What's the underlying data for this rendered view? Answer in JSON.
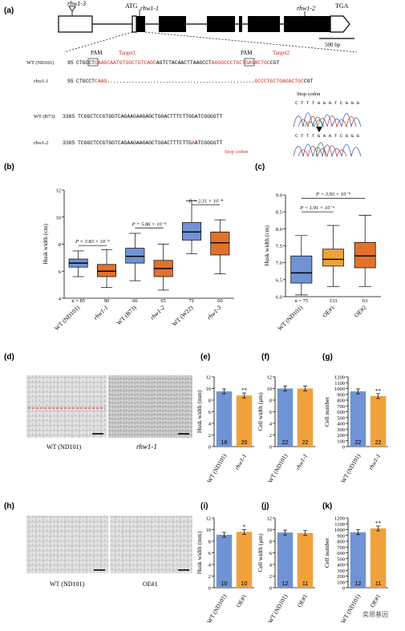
{
  "panel_labels": {
    "a": "(a)",
    "b": "(b)",
    "c": "(c)",
    "d": "(d)",
    "e": "(e)",
    "f": "(f)",
    "g": "(g)",
    "h": "(h)",
    "i": "(i)",
    "j": "(j)",
    "k": "(k)"
  },
  "gene": {
    "rhw1_3": "rhw1-3",
    "atg": "ATG",
    "rhw1_1": "rhw1-1",
    "rhw1_2": "rhw1-2",
    "tga": "TGA",
    "scale": "500 bp",
    "pam": "PAM",
    "target1": "Target1",
    "target2": "Target2",
    "stop_codon": "Stop codon",
    "seq_rows": [
      {
        "label": "WT (ND101)",
        "pos": "95",
        "left": "CTG",
        "box": "CCT",
        "red1": "CAAGCAATGTGGCTGTCAGC",
        "mid": "AGTCTACAACTTAAG",
        "box2": "CCT",
        "red2": "AGGGCCCTGCTGAGACTGC",
        "tail": "CGT"
      },
      {
        "label": "rhw1-1",
        "pos": "95",
        "left": "CTGCCT",
        "red1": "CAAG",
        "dash": "................................................",
        "red2": "GCCCTGCTGAGACTGC",
        "tail": "CGT"
      },
      {
        "label": "WT (B73)",
        "pos": "3385",
        "seq": "TCGGCTCCGTGGTCAGAAGAAGAGCTGGACTTTCTTGGATCGGGGTT"
      },
      {
        "label": "rhw1-2",
        "pos": "3385",
        "seq1": "TCGGCTCCGTGGTCAGAAGAAGAGCTGGACTTTCTTG",
        "red": "A",
        "seq2": "ATCGGGGTT"
      }
    ],
    "chrom_top": "C T T T G G A T C G G G",
    "chrom_bot": "C T T T G A A T C G G G"
  },
  "chart_data": [
    {
      "type": "box",
      "panel": "b",
      "ylabel": "Husk width (cm)",
      "ylim": [
        4,
        12
      ],
      "yticks": [
        4,
        6,
        8,
        10,
        12
      ],
      "categories": [
        "WT (ND101)",
        "rhw1-1",
        "WT (B73)",
        "rhw1-2",
        "WT (W22)",
        "rhw1-3"
      ],
      "n": [
        "n = 85",
        "90",
        "66",
        "65",
        "71",
        "60"
      ],
      "boxes": [
        {
          "min": 5.6,
          "q1": 6.3,
          "med": 6.6,
          "q3": 6.9,
          "max": 7.5,
          "color": "#6f93d4"
        },
        {
          "min": 4.8,
          "q1": 5.6,
          "med": 6.0,
          "q3": 6.5,
          "max": 7.6,
          "color": "#e2722b"
        },
        {
          "min": 5.3,
          "q1": 6.6,
          "med": 7.1,
          "q3": 7.7,
          "max": 8.8,
          "color": "#6f93d4"
        },
        {
          "min": 4.6,
          "q1": 5.6,
          "med": 6.2,
          "q3": 6.8,
          "max": 8.0,
          "color": "#e2722b"
        },
        {
          "min": 7.3,
          "q1": 8.3,
          "med": 8.9,
          "q3": 9.6,
          "max": 11.2,
          "color": "#6f93d4"
        },
        {
          "min": 5.8,
          "q1": 7.2,
          "med": 8.1,
          "q3": 8.9,
          "max": 9.8,
          "color": "#e2722b"
        }
      ],
      "pvals": [
        "P = 3.83 × 10⁻⁵",
        "P = 5.86 × 10⁻⁵",
        "P = 2.31 × 10⁻⁸"
      ]
    },
    {
      "type": "box",
      "panel": "c",
      "ylabel": "Husk width (cm)",
      "ylim": [
        6.0,
        9.0
      ],
      "yticks": [
        "6.0",
        "6.5",
        "7.0",
        "7.5",
        "8.0",
        "8.5",
        "9.0"
      ],
      "categories": [
        "WT (ND101)",
        "OE#1",
        "OE#2"
      ],
      "n": [
        "n = 75",
        "133",
        "63"
      ],
      "boxes": [
        {
          "min": 6.05,
          "q1": 6.4,
          "med": 6.7,
          "q3": 7.2,
          "max": 7.8,
          "color": "#6f93d4"
        },
        {
          "min": 6.3,
          "q1": 6.9,
          "med": 7.1,
          "q3": 7.4,
          "max": 8.1,
          "color": "#f0a13b"
        },
        {
          "min": 6.3,
          "q1": 6.85,
          "med": 7.2,
          "q3": 7.6,
          "max": 8.4,
          "color": "#e2722b"
        }
      ],
      "pvals": [
        "P = 1.91 × 10⁻⁶",
        "P = 3.93 × 10⁻⁸"
      ]
    },
    {
      "type": "bar",
      "panel": "e",
      "ylabel": "Husk width (mm)",
      "ylim": [
        0,
        12
      ],
      "yticks": [
        "0",
        "2",
        "4",
        "6",
        "8",
        "10",
        "12"
      ],
      "categories": [
        "WT (ND101)",
        "rhw1-1"
      ],
      "values": [
        9.5,
        8.8
      ],
      "n": [
        "18",
        "20"
      ],
      "sig": [
        "",
        "**"
      ]
    },
    {
      "type": "bar",
      "panel": "f",
      "ylabel": "Cell width (μm)",
      "ylim": [
        0,
        12
      ],
      "yticks": [
        "0",
        "2",
        "4",
        "6",
        "8",
        "10",
        "12"
      ],
      "categories": [
        "WT (ND101)",
        "rhw1-1"
      ],
      "values": [
        10.0,
        10.0
      ],
      "n": [
        "22",
        "22"
      ],
      "sig": [
        "",
        ""
      ]
    },
    {
      "type": "bar",
      "panel": "g",
      "ylabel": "Cell number",
      "ylim": [
        0,
        1200
      ],
      "yticks": [
        "0",
        "100",
        "200",
        "300",
        "400",
        "500",
        "600",
        "700",
        "800",
        "900",
        "1000",
        "1100",
        "1200"
      ],
      "categories": [
        "WT (ND101)",
        "rhw1-1"
      ],
      "values": [
        950,
        870
      ],
      "n": [
        "22",
        "22"
      ],
      "sig": [
        "",
        "**"
      ]
    },
    {
      "type": "bar",
      "panel": "i",
      "ylabel": "Husk width (mm)",
      "ylim": [
        0,
        12
      ],
      "yticks": [
        "0",
        "2",
        "4",
        "6",
        "8",
        "10",
        "12"
      ],
      "categories": [
        "WT (ND101)",
        "OE#1"
      ],
      "values": [
        9.1,
        9.6
      ],
      "n": [
        "10",
        "10"
      ],
      "sig": [
        "",
        "*"
      ]
    },
    {
      "type": "bar",
      "panel": "j",
      "ylabel": "Cell width (μm)",
      "ylim": [
        0,
        12
      ],
      "yticks": [
        "0",
        "2",
        "4",
        "6",
        "8",
        "10",
        "12"
      ],
      "categories": [
        "WT (ND101)",
        "OE#1"
      ],
      "values": [
        9.5,
        9.4
      ],
      "n": [
        "12",
        "11"
      ],
      "sig": [
        "",
        ""
      ]
    },
    {
      "type": "bar",
      "panel": "k",
      "ylabel": "Cell number",
      "ylim": [
        0,
        1200
      ],
      "yticks": [
        "0",
        "100",
        "200",
        "300",
        "400",
        "500",
        "600",
        "700",
        "800",
        "900",
        "1000",
        "1100",
        "1200"
      ],
      "categories": [
        "WT (ND101)",
        "OE#1"
      ],
      "values": [
        955,
        1020
      ],
      "n": [
        "12",
        "11"
      ],
      "sig": [
        "",
        "**"
      ]
    }
  ],
  "micro": {
    "d_left": "WT (ND101)",
    "d_right": "rhw1-1",
    "h_left": "WT (ND101)",
    "h_right": "OE#1"
  },
  "colors": {
    "wt": "#6f93d4",
    "mut": "#e2722b",
    "oe": "#f0a13b",
    "red": "#d42a1e"
  },
  "watermark": "奕思基因"
}
